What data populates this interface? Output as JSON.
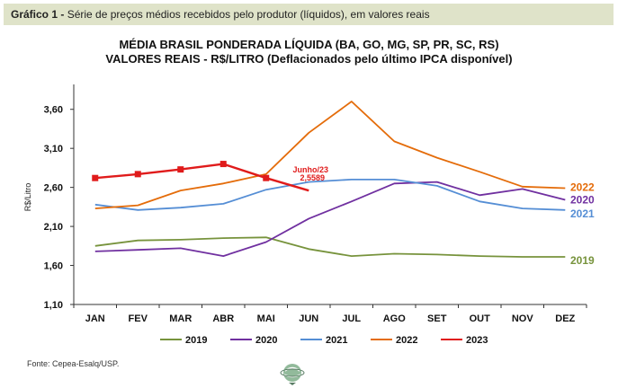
{
  "caption": {
    "label": "Gráfico 1 -",
    "text": "Série de preços médios recebidos pelo produtor (líquidos), em valores reais"
  },
  "source": "Fonte: Cepea-Esalq/USP.",
  "logo_icon": "globe-logo-icon",
  "chart_data": {
    "type": "line",
    "title": "MÉDIA BRASIL PONDERADA LÍQUIDA (BA, GO, MG, SP, PR, SC, RS)",
    "subtitle": "VALORES REAIS - R$/LITRO (Deflacionados pelo último IPCA disponível)",
    "xlabel": "",
    "ylabel": "R$/Litro",
    "ylim": [
      1.1,
      3.85
    ],
    "yticks": [
      "1,10",
      "1,60",
      "2,10",
      "2,60",
      "3,10",
      "3,60"
    ],
    "categories": [
      "JAN",
      "FEV",
      "MAR",
      "ABR",
      "MAI",
      "JUN",
      "JUL",
      "AGO",
      "SET",
      "OUT",
      "NOV",
      "DEZ"
    ],
    "legend_position": "bottom",
    "series": [
      {
        "name": "2019",
        "color": "#77933c",
        "end_label": "2019",
        "values": [
          1.85,
          1.92,
          1.93,
          1.95,
          1.96,
          1.81,
          1.72,
          1.75,
          1.74,
          1.72,
          1.71,
          1.71
        ]
      },
      {
        "name": "2020",
        "color": "#7030a0",
        "end_label": "2020",
        "values": [
          1.78,
          1.8,
          1.82,
          1.72,
          1.9,
          2.2,
          2.42,
          2.65,
          2.67,
          2.5,
          2.58,
          2.44
        ]
      },
      {
        "name": "2021",
        "color": "#558ed5",
        "end_label": "2021",
        "values": [
          2.38,
          2.31,
          2.34,
          2.39,
          2.57,
          2.67,
          2.7,
          2.7,
          2.62,
          2.42,
          2.33,
          2.31
        ]
      },
      {
        "name": "2022",
        "color": "#e46c0a",
        "end_label": "2022",
        "values": [
          2.33,
          2.37,
          2.56,
          2.65,
          2.77,
          3.3,
          3.7,
          3.19,
          2.98,
          2.8,
          2.61,
          2.59
        ]
      },
      {
        "name": "2023",
        "color": "#e01b1b",
        "markers": true,
        "values": [
          2.72,
          2.77,
          2.83,
          2.9,
          2.72,
          2.5589,
          null,
          null,
          null,
          null,
          null,
          null
        ]
      }
    ],
    "annotation": {
      "series": "2023",
      "category": "JUN",
      "line1": "Junho/23",
      "line2": "2,5589"
    }
  }
}
